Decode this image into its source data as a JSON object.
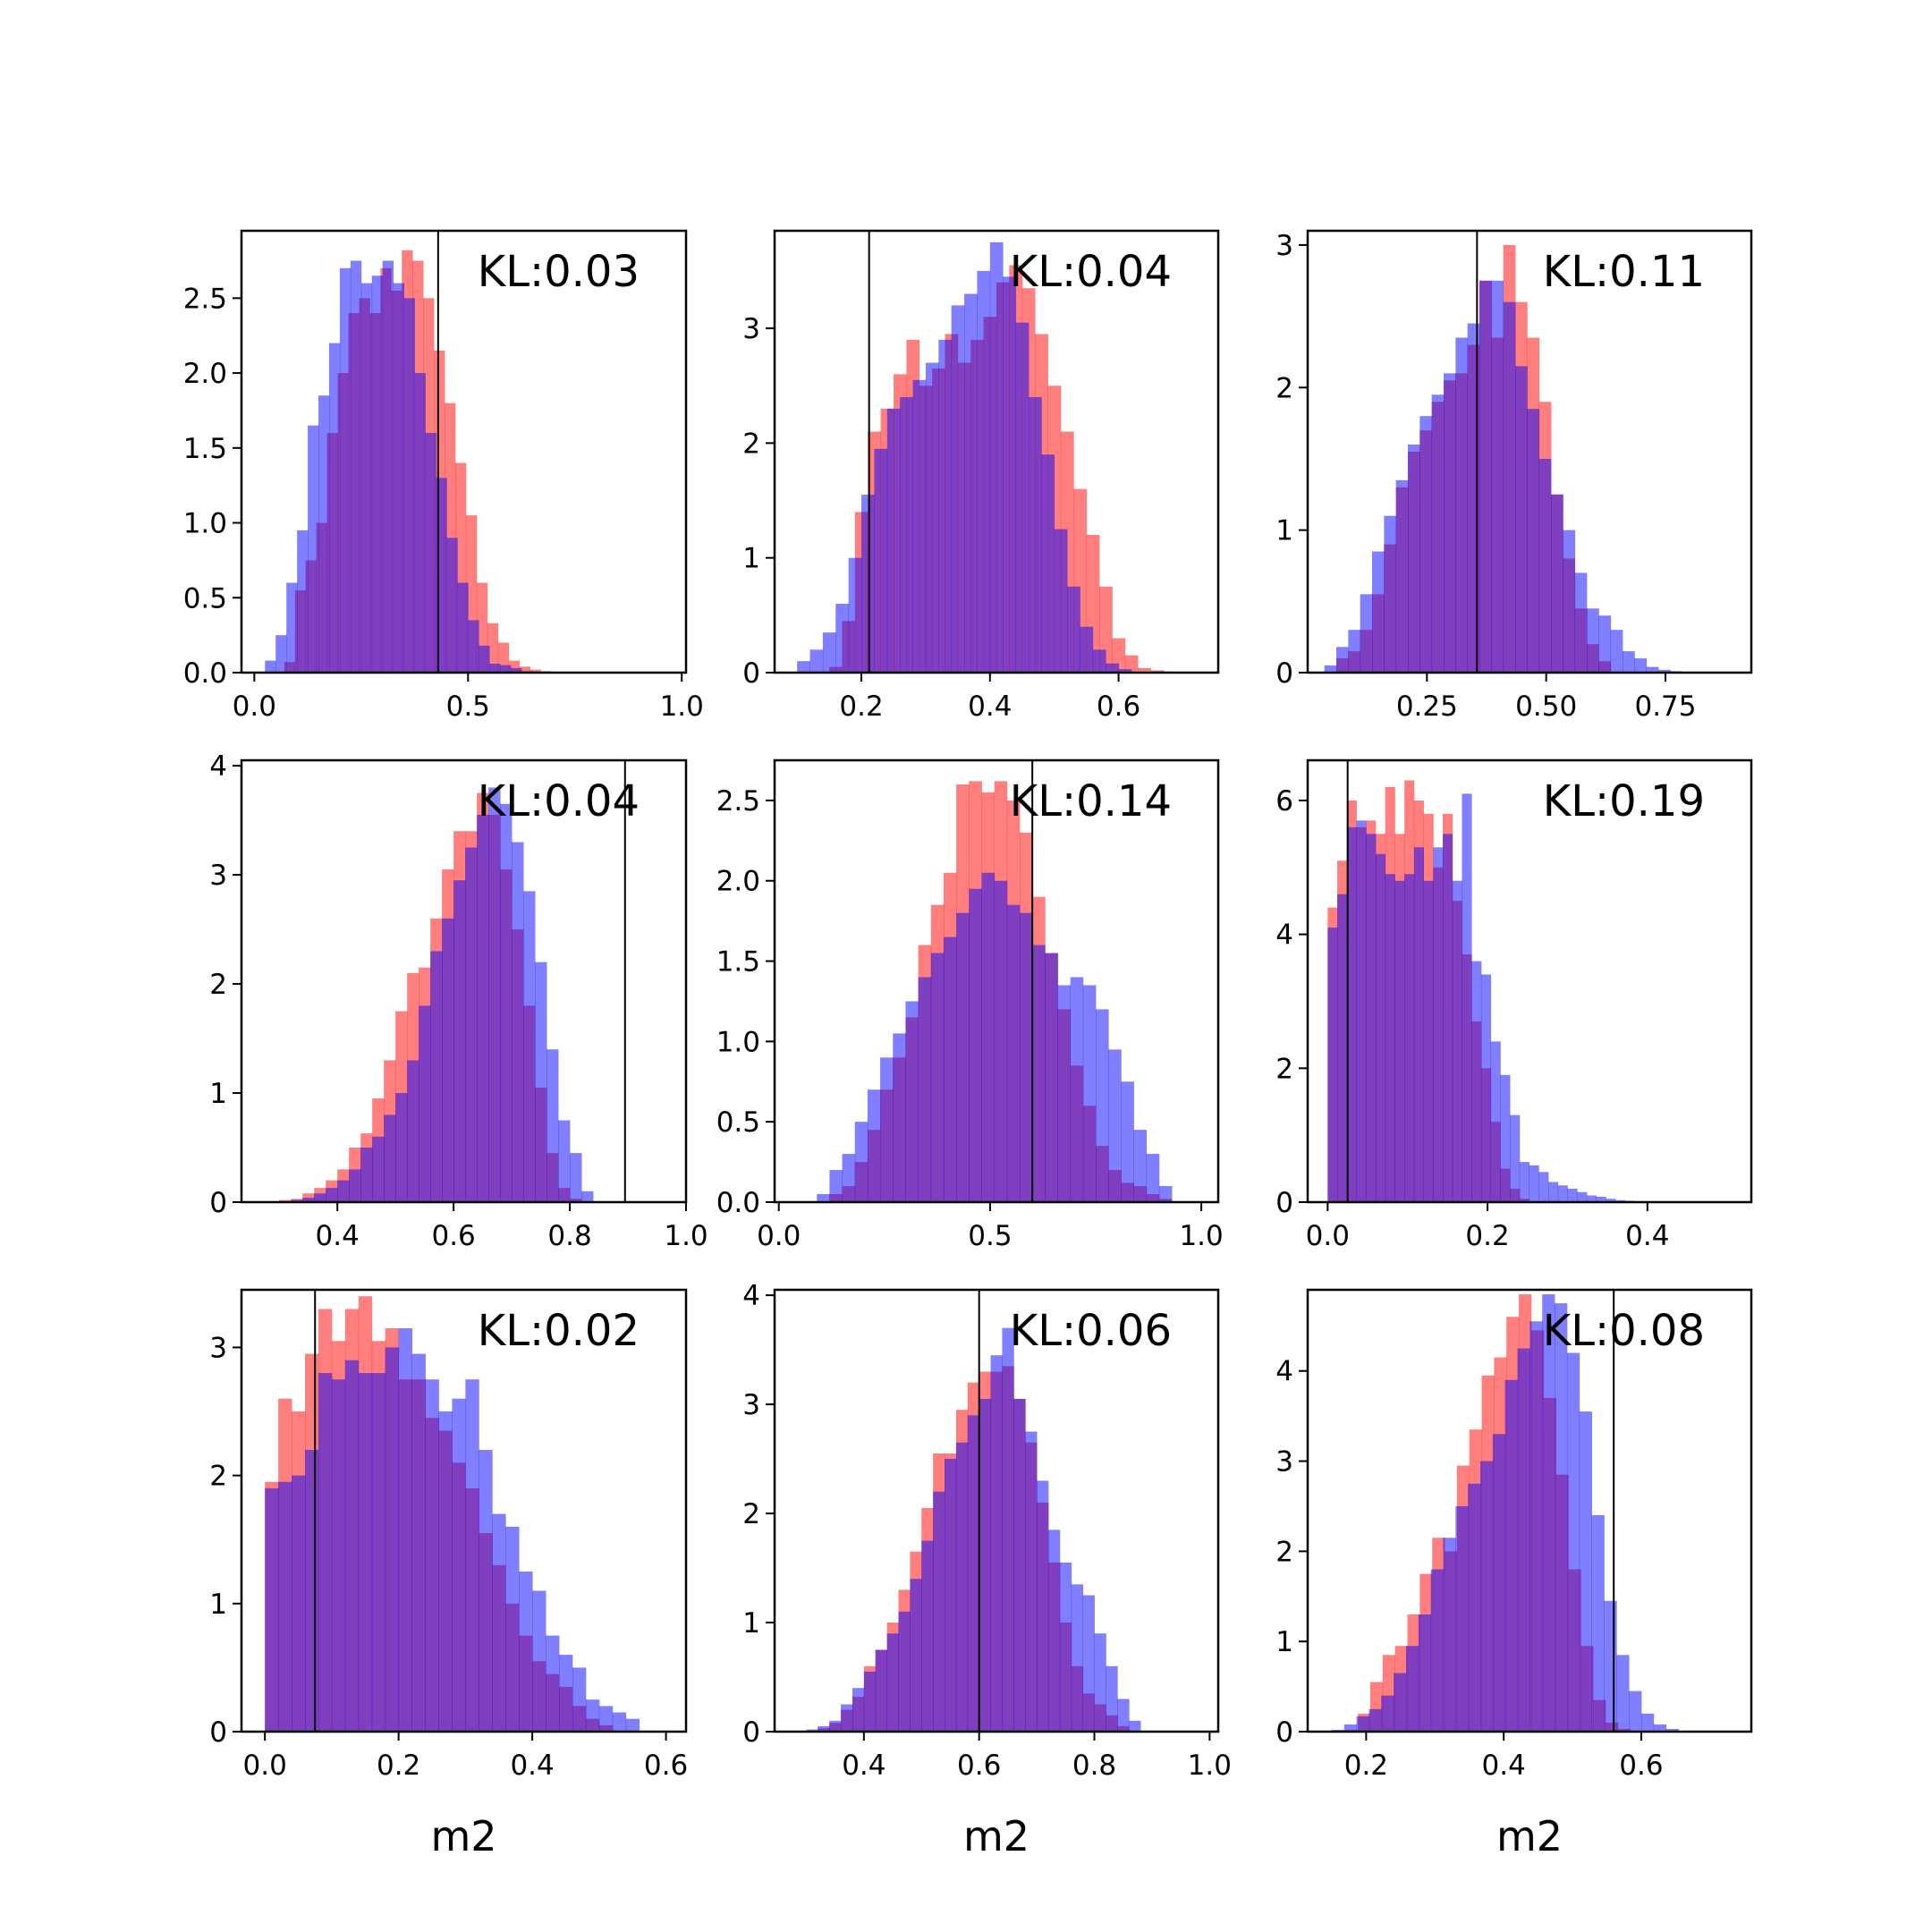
{
  "colors": {
    "prior": "#0000ff",
    "posterior": "#ff0000",
    "bar_opacity": 0.5,
    "truth_line": "#000000"
  },
  "chart_data": [
    {
      "type": "bar",
      "title": "",
      "annotation": "KL:0.03",
      "xlabel": "",
      "xlim": [
        -0.03,
        1.01
      ],
      "ylim": [
        0,
        2.95
      ],
      "xticks": [
        "0.0",
        "0.5",
        "1.0"
      ],
      "xtick_values": [
        0.0,
        0.5,
        1.0
      ],
      "yticks": [
        "0.0",
        "0.5",
        "1.0",
        "1.5",
        "2.0",
        "2.5"
      ],
      "ytick_values": [
        0.0,
        0.5,
        1.0,
        1.5,
        2.0,
        2.5
      ],
      "truth": 0.43,
      "series": [
        {
          "start": 0.07,
          "step": 0.025,
          "values": [
            0.07,
            0.55,
            0.75,
            1.0,
            1.6,
            2.0,
            2.4,
            2.5,
            2.4,
            2.7,
            2.55,
            2.82,
            2.75,
            2.5,
            2.15,
            1.8,
            1.4,
            1.05,
            0.6,
            0.33,
            0.2,
            0.08,
            0.04,
            0.02,
            0.01
          ]
        },
        {
          "start": 0.025,
          "step": 0.025,
          "values": [
            0.08,
            0.25,
            0.6,
            0.95,
            1.65,
            1.85,
            2.2,
            2.7,
            2.75,
            2.6,
            2.65,
            2.75,
            2.6,
            2.5,
            2.0,
            1.6,
            1.3,
            0.9,
            0.6,
            0.35,
            0.18,
            0.06,
            0.05,
            0.03,
            0.01
          ]
        }
      ]
    },
    {
      "type": "bar",
      "title": "",
      "annotation": "KL:0.04",
      "xlabel": "",
      "xlim": [
        0.065,
        0.755
      ],
      "ylim": [
        0,
        3.85
      ],
      "xticks": [
        "0.2",
        "0.4",
        "0.6"
      ],
      "xtick_values": [
        0.2,
        0.4,
        0.6
      ],
      "yticks": [
        "0",
        "1",
        "2",
        "3"
      ],
      "ytick_values": [
        0,
        1,
        2,
        3
      ],
      "truth": 0.212,
      "series": [
        {
          "start": 0.15,
          "step": 0.02,
          "values": [
            0.05,
            0.45,
            1.4,
            2.1,
            2.3,
            2.6,
            2.9,
            2.5,
            2.65,
            2.95,
            2.7,
            2.9,
            3.1,
            3.4,
            3.55,
            3.35,
            2.95,
            2.5,
            2.1,
            1.6,
            1.2,
            0.75,
            0.3,
            0.15,
            0.04,
            0.02,
            0.01
          ]
        },
        {
          "start": 0.1,
          "step": 0.02,
          "values": [
            0.1,
            0.2,
            0.35,
            0.6,
            1.0,
            1.55,
            1.95,
            2.3,
            2.4,
            2.55,
            2.7,
            2.9,
            3.2,
            3.3,
            3.5,
            3.75,
            3.45,
            3.05,
            2.4,
            1.9,
            1.25,
            0.75,
            0.4,
            0.2,
            0.08,
            0.03
          ]
        }
      ]
    },
    {
      "type": "bar",
      "title": "",
      "annotation": "KL:0.11",
      "xlabel": "",
      "xlim": [
        0.0,
        0.93
      ],
      "ylim": [
        0,
        3.1
      ],
      "xticks": [
        "0.25",
        "0.50",
        "0.75"
      ],
      "xtick_values": [
        0.25,
        0.5,
        0.75
      ],
      "yticks": [
        "0",
        "1",
        "2",
        "3"
      ],
      "ytick_values": [
        0,
        1,
        2,
        3
      ],
      "truth": 0.355,
      "series": [
        {
          "start": 0.06,
          "step": 0.025,
          "values": [
            0.1,
            0.15,
            0.3,
            0.55,
            0.9,
            1.3,
            1.55,
            1.7,
            1.9,
            2.05,
            2.1,
            2.3,
            2.75,
            2.35,
            3.0,
            2.6,
            2.35,
            1.9,
            1.25,
            0.8,
            0.45,
            0.2,
            0.08
          ]
        },
        {
          "start": 0.035,
          "step": 0.025,
          "values": [
            0.05,
            0.18,
            0.3,
            0.55,
            0.85,
            1.1,
            1.35,
            1.6,
            1.8,
            1.95,
            2.1,
            2.35,
            2.45,
            2.75,
            2.75,
            2.6,
            2.15,
            1.85,
            1.5,
            1.25,
            1.0,
            0.7,
            0.45,
            0.4,
            0.3,
            0.15,
            0.1,
            0.04,
            0.02,
            0.01
          ]
        }
      ]
    },
    {
      "type": "bar",
      "title": "",
      "annotation": "KL:0.04",
      "xlabel": "",
      "xlim": [
        0.235,
        1.0
      ],
      "ylim": [
        0,
        4.05
      ],
      "xticks": [
        "0.4",
        "0.6",
        "0.8",
        "1.0"
      ],
      "xtick_values": [
        0.4,
        0.6,
        0.8,
        1.0
      ],
      "yticks": [
        "0",
        "1",
        "2",
        "3",
        "4"
      ],
      "ytick_values": [
        0,
        1,
        2,
        3,
        4
      ],
      "truth": 0.895,
      "series": [
        {
          "start": 0.3,
          "step": 0.02,
          "values": [
            0.02,
            0.03,
            0.08,
            0.13,
            0.2,
            0.3,
            0.5,
            0.63,
            0.95,
            1.3,
            1.75,
            2.1,
            2.15,
            2.6,
            3.05,
            3.4,
            3.4,
            3.75,
            3.55,
            3.05,
            2.5,
            1.8,
            1.05,
            0.45,
            0.13,
            0.03
          ]
        },
        {
          "start": 0.32,
          "step": 0.02,
          "values": [
            0.02,
            0.04,
            0.08,
            0.13,
            0.2,
            0.3,
            0.5,
            0.6,
            0.8,
            1.0,
            1.3,
            1.8,
            2.3,
            2.6,
            2.95,
            3.25,
            3.55,
            3.8,
            3.65,
            3.3,
            2.85,
            2.2,
            1.4,
            0.75,
            0.45,
            0.1
          ]
        }
      ]
    },
    {
      "type": "bar",
      "title": "",
      "annotation": "KL:0.14",
      "xlabel": "",
      "xlim": [
        -0.01,
        1.04
      ],
      "ylim": [
        0,
        2.75
      ],
      "xticks": [
        "0.0",
        "0.5",
        "1.0"
      ],
      "xtick_values": [
        0.0,
        0.5,
        1.0
      ],
      "yticks": [
        "0.0",
        "0.5",
        "1.0",
        "1.5",
        "2.0",
        "2.5"
      ],
      "ytick_values": [
        0.0,
        0.5,
        1.0,
        1.5,
        2.0,
        2.5
      ],
      "truth": 0.6,
      "series": [
        {
          "start": 0.12,
          "step": 0.03,
          "values": [
            0.05,
            0.1,
            0.25,
            0.45,
            0.7,
            0.9,
            1.15,
            1.6,
            1.85,
            2.05,
            2.6,
            2.62,
            2.55,
            2.62,
            2.5,
            2.3,
            1.9,
            1.55,
            1.2,
            0.85,
            0.6,
            0.35,
            0.2,
            0.12,
            0.1,
            0.05,
            0.02
          ]
        },
        {
          "start": 0.09,
          "step": 0.03,
          "values": [
            0.05,
            0.2,
            0.3,
            0.5,
            0.7,
            0.9,
            1.05,
            1.25,
            1.4,
            1.55,
            1.65,
            1.8,
            1.95,
            2.05,
            2.0,
            1.85,
            1.8,
            1.6,
            1.55,
            1.35,
            1.4,
            1.35,
            1.2,
            0.95,
            0.75,
            0.45,
            0.3,
            0.1
          ]
        }
      ]
    },
    {
      "type": "bar",
      "title": "",
      "annotation": "KL:0.19",
      "xlabel": "",
      "xlim": [
        -0.025,
        0.53
      ],
      "ylim": [
        0,
        6.6
      ],
      "xticks": [
        "0.0",
        "0.2",
        "0.4"
      ],
      "xtick_values": [
        0.0,
        0.2,
        0.4
      ],
      "yticks": [
        "0",
        "2",
        "4",
        "6"
      ],
      "ytick_values": [
        0,
        2,
        4,
        6
      ],
      "truth": 0.025,
      "series": [
        {
          "start": 0.0,
          "step": 0.012,
          "values": [
            4.4,
            5.1,
            6.0,
            5.6,
            5.7,
            5.5,
            6.2,
            5.5,
            6.3,
            6.0,
            5.8,
            5.0,
            5.8,
            4.5,
            3.7,
            2.7,
            2.0,
            1.2,
            0.5,
            0.2,
            0.05
          ]
        },
        {
          "start": 0.0,
          "step": 0.012,
          "values": [
            4.1,
            4.6,
            5.6,
            5.7,
            5.5,
            5.2,
            4.9,
            4.8,
            4.9,
            5.3,
            4.8,
            5.3,
            5.5,
            4.8,
            6.1,
            3.6,
            3.4,
            2.4,
            1.9,
            1.3,
            0.6,
            0.55,
            0.45,
            0.3,
            0.25,
            0.2,
            0.15,
            0.1,
            0.08,
            0.05,
            0.03,
            0.02
          ]
        }
      ]
    },
    {
      "type": "bar",
      "title": "",
      "annotation": "KL:0.02",
      "xlabel": "",
      "xlim": [
        -0.035,
        0.63
      ],
      "ylim": [
        0,
        3.45
      ],
      "xticks": [
        "0.0",
        "0.2",
        "0.4",
        "0.6"
      ],
      "xtick_values": [
        0.0,
        0.2,
        0.4,
        0.6
      ],
      "yticks": [
        "0",
        "1",
        "2",
        "3"
      ],
      "ytick_values": [
        0,
        1,
        2,
        3
      ],
      "truth": 0.075,
      "series": [
        {
          "start": 0.0,
          "step": 0.02,
          "values": [
            1.95,
            2.6,
            2.5,
            2.95,
            3.3,
            3.05,
            3.3,
            3.4,
            3.05,
            3.15,
            2.75,
            2.75,
            2.45,
            2.35,
            2.1,
            1.9,
            1.55,
            1.3,
            1.0,
            0.75,
            0.55,
            0.45,
            0.35,
            0.2,
            0.1,
            0.05
          ]
        },
        {
          "start": 0.0,
          "step": 0.02,
          "values": [
            1.9,
            1.95,
            2.0,
            2.2,
            2.8,
            2.75,
            2.9,
            2.8,
            2.8,
            3.0,
            3.15,
            2.95,
            2.75,
            2.5,
            2.6,
            2.75,
            2.2,
            1.7,
            1.6,
            1.25,
            1.1,
            0.75,
            0.6,
            0.5,
            0.25,
            0.2,
            0.15,
            0.1
          ]
        }
      ]
    },
    {
      "type": "bar",
      "title": "",
      "annotation": "KL:0.06",
      "xlabel": "m2",
      "xlim": [
        0.245,
        1.015
      ],
      "ylim": [
        0,
        4.05
      ],
      "xticks": [
        "0.4",
        "0.6",
        "0.8",
        "1.0"
      ],
      "xtick_values": [
        0.4,
        0.6,
        0.8,
        1.0
      ],
      "yticks": [
        "0",
        "1",
        "2",
        "3",
        "4"
      ],
      "ytick_values": [
        0,
        1,
        2,
        3,
        4
      ],
      "truth": 0.6,
      "series": [
        {
          "start": 0.32,
          "step": 0.02,
          "values": [
            0.03,
            0.08,
            0.2,
            0.32,
            0.6,
            0.75,
            1.0,
            1.3,
            1.65,
            2.05,
            2.55,
            2.55,
            2.95,
            3.2,
            3.3,
            3.3,
            3.35,
            3.05,
            2.65,
            2.1,
            1.55,
            1.0,
            0.6,
            0.35,
            0.25,
            0.15,
            0.05
          ]
        },
        {
          "start": 0.3,
          "step": 0.02,
          "values": [
            0.02,
            0.05,
            0.1,
            0.25,
            0.4,
            0.55,
            0.75,
            0.9,
            1.1,
            1.4,
            1.75,
            2.2,
            2.5,
            2.65,
            2.9,
            3.05,
            3.45,
            3.7,
            3.05,
            2.75,
            2.3,
            1.85,
            1.55,
            1.35,
            1.25,
            0.9,
            0.6,
            0.3,
            0.1
          ]
        }
      ]
    },
    {
      "type": "bar",
      "title": "",
      "annotation": "KL:0.08",
      "xlabel": "m2",
      "xlim": [
        0.115,
        0.76
      ],
      "ylim": [
        0,
        4.9
      ],
      "xticks": [
        "0.2",
        "0.4",
        "0.6"
      ],
      "xtick_values": [
        0.2,
        0.4,
        0.6
      ],
      "yticks": [
        "0",
        "1",
        "2",
        "3",
        "4"
      ],
      "ytick_values": [
        0,
        1,
        2,
        3,
        4
      ],
      "truth": 0.56,
      "series": [
        {
          "start": 0.17,
          "step": 0.018,
          "values": [
            0.02,
            0.2,
            0.55,
            0.85,
            0.95,
            1.3,
            1.75,
            2.15,
            2.0,
            2.95,
            3.35,
            3.95,
            4.15,
            4.6,
            4.85,
            4.45,
            3.7,
            2.85,
            1.8,
            0.95,
            0.35,
            0.1,
            0.03
          ]
        },
        {
          "start": 0.15,
          "step": 0.018,
          "values": [
            0.02,
            0.08,
            0.17,
            0.25,
            0.4,
            0.65,
            0.95,
            1.3,
            1.8,
            2.15,
            2.5,
            2.75,
            3.0,
            3.3,
            3.9,
            4.25,
            4.55,
            4.85,
            4.75,
            4.2,
            3.55,
            2.4,
            1.45,
            0.85,
            0.45,
            0.2,
            0.08,
            0.03
          ]
        }
      ]
    }
  ]
}
